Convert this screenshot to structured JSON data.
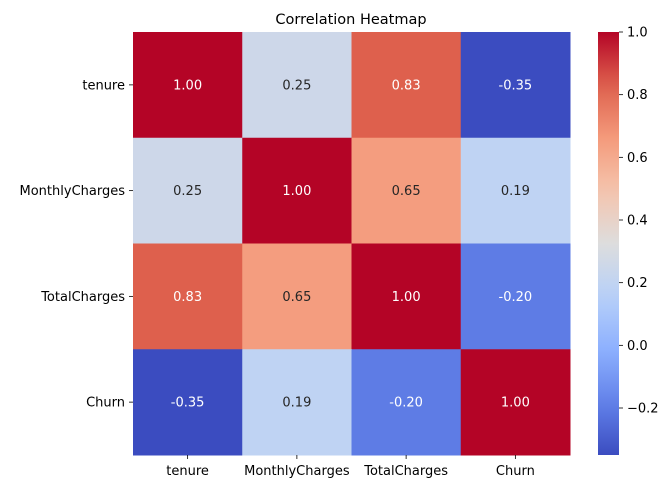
{
  "chart_data": {
    "type": "heatmap",
    "title": "Correlation Heatmap",
    "x_categories": [
      "tenure",
      "MonthlyCharges",
      "TotalCharges",
      "Churn"
    ],
    "y_categories": [
      "tenure",
      "MonthlyCharges",
      "TotalCharges",
      "Churn"
    ],
    "values": [
      [
        1.0,
        0.25,
        0.83,
        -0.35
      ],
      [
        0.25,
        1.0,
        0.65,
        0.19
      ],
      [
        0.83,
        0.65,
        1.0,
        -0.2
      ],
      [
        -0.35,
        0.19,
        -0.2,
        1.0
      ]
    ],
    "cell_labels": [
      [
        "1.00",
        "0.25",
        "0.83",
        "-0.35"
      ],
      [
        "0.25",
        "1.00",
        "0.65",
        "0.19"
      ],
      [
        "0.83",
        "0.65",
        "1.00",
        "-0.20"
      ],
      [
        "-0.35",
        "0.19",
        "-0.20",
        "1.00"
      ]
    ],
    "colormap": "coolwarm",
    "colorbar": {
      "range": [
        -0.35,
        1.0
      ],
      "ticks": [
        -0.2,
        0.0,
        0.2,
        0.4,
        0.6,
        0.8,
        1.0
      ],
      "tick_labels": [
        "−0.2",
        "0.0",
        "0.2",
        "0.4",
        "0.6",
        "0.8",
        "1.0"
      ]
    },
    "annotation_colors": {
      "dark": "#262626",
      "light": "#ffffff"
    }
  }
}
